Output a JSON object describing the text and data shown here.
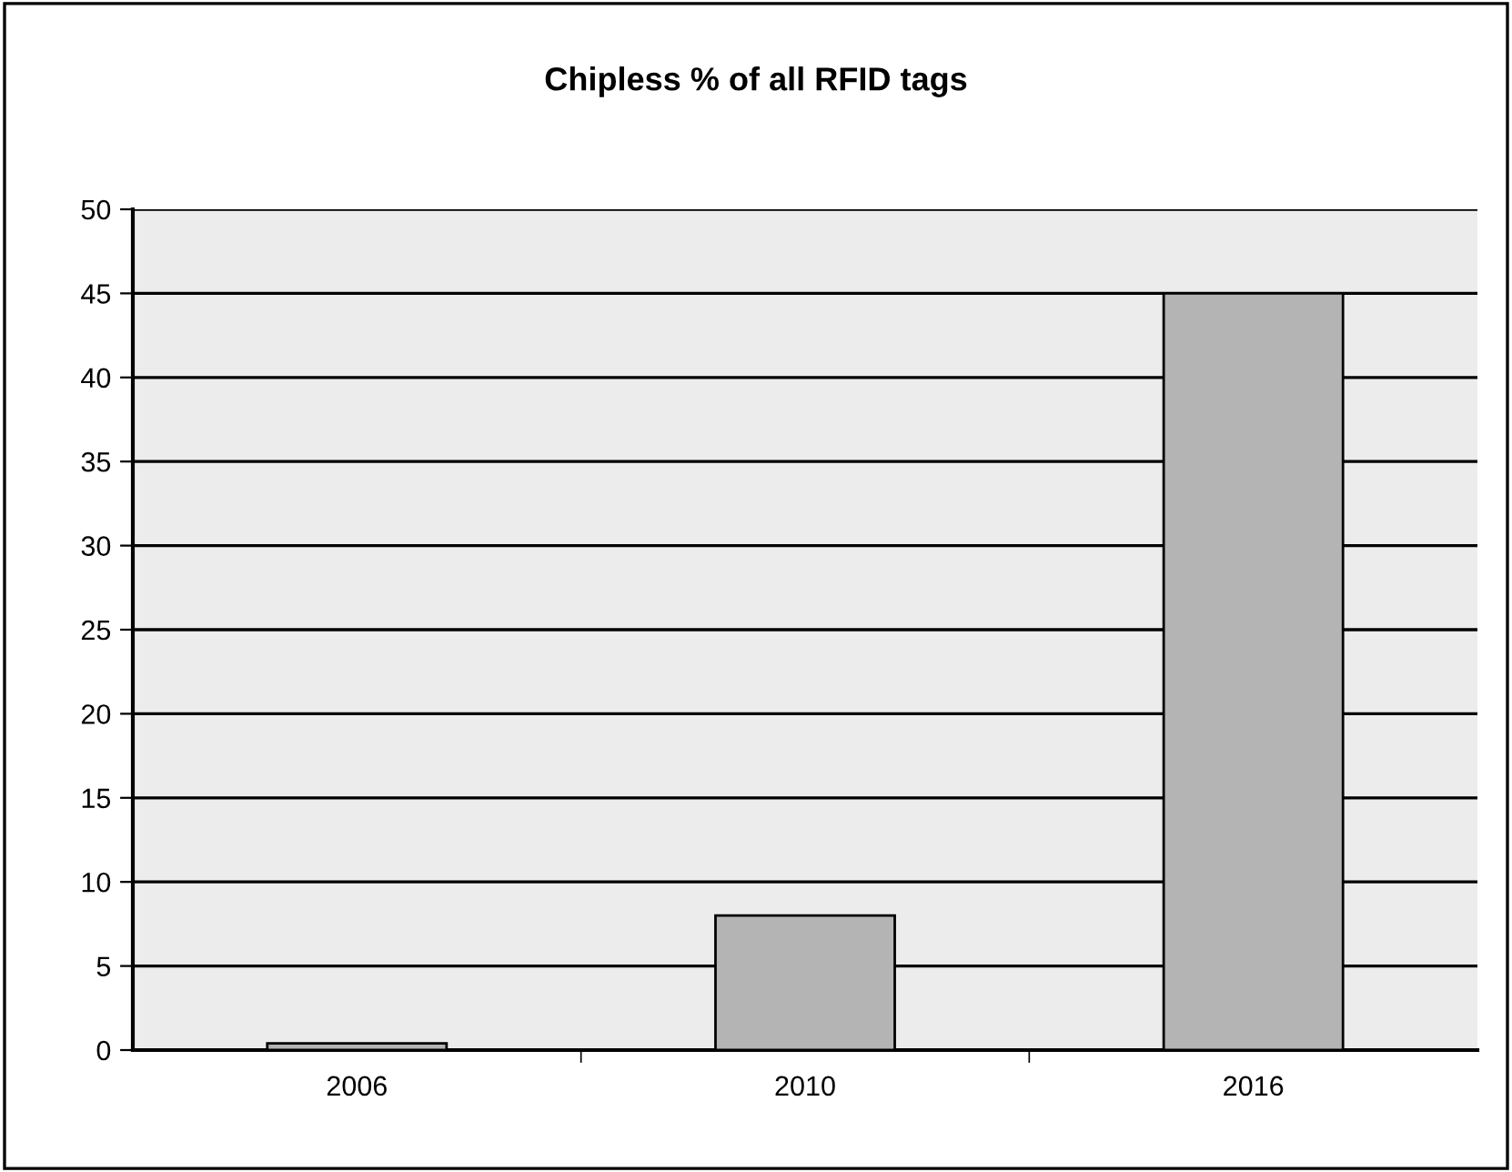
{
  "chart_data": {
    "type": "bar",
    "title": "Chipless % of all RFID tags",
    "categories": [
      "2006",
      "2010",
      "2016"
    ],
    "values": [
      0.4,
      8,
      45
    ],
    "color": "#b4b4b4",
    "ylim": [
      0,
      50
    ],
    "yticks": [
      0,
      5,
      10,
      15,
      20,
      25,
      30,
      35,
      40,
      45,
      50
    ],
    "grid": "y"
  }
}
